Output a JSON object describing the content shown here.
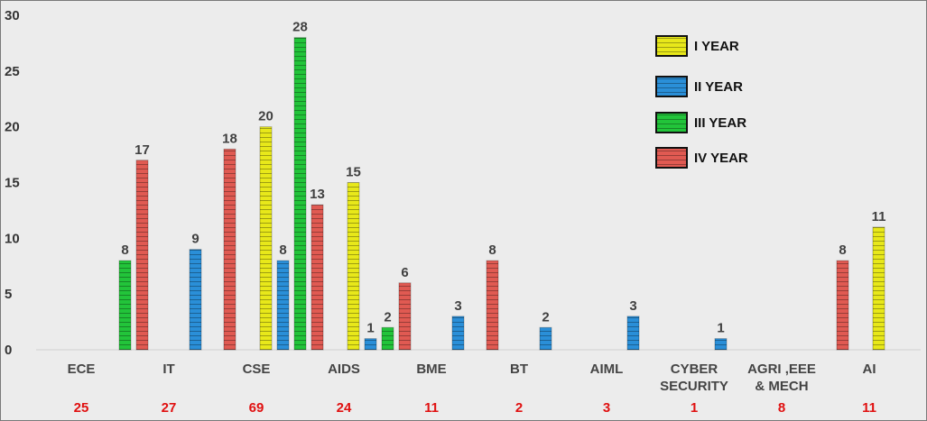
{
  "chart_data": {
    "type": "bar",
    "ylim": [
      0,
      30
    ],
    "yticks": [
      "0",
      "5",
      "10",
      "15",
      "20",
      "25",
      "30"
    ],
    "categories": [
      [
        "ECE"
      ],
      [
        "IT"
      ],
      [
        "CSE"
      ],
      [
        "AIDS"
      ],
      [
        "BME"
      ],
      [
        "BT"
      ],
      [
        "AIML"
      ],
      [
        "CYBER",
        "SECURITY"
      ],
      [
        "AGRI ,EEE",
        "& MECH"
      ],
      [
        "AI"
      ]
    ],
    "series": [
      {
        "name": "I YEAR",
        "color": "#e8e81a",
        "values": [
          null,
          null,
          20,
          15,
          null,
          null,
          null,
          null,
          null,
          11
        ]
      },
      {
        "name": "II YEAR",
        "color": "#2a8fd8",
        "values": [
          null,
          9,
          8,
          1,
          3,
          2,
          3,
          1,
          null,
          null
        ]
      },
      {
        "name": "III YEAR",
        "color": "#22c43a",
        "values": [
          8,
          null,
          28,
          2,
          null,
          null,
          null,
          null,
          null,
          null
        ]
      },
      {
        "name": "IV YEAR",
        "color": "#e05a52",
        "values": [
          17,
          18,
          13,
          6,
          8,
          null,
          null,
          null,
          8,
          null
        ]
      }
    ],
    "totals": [
      "25",
      "27",
      "69",
      "24",
      "11",
      "2",
      "3",
      "1",
      "8",
      "11"
    ],
    "legend_position": "top-right",
    "grid": false
  }
}
